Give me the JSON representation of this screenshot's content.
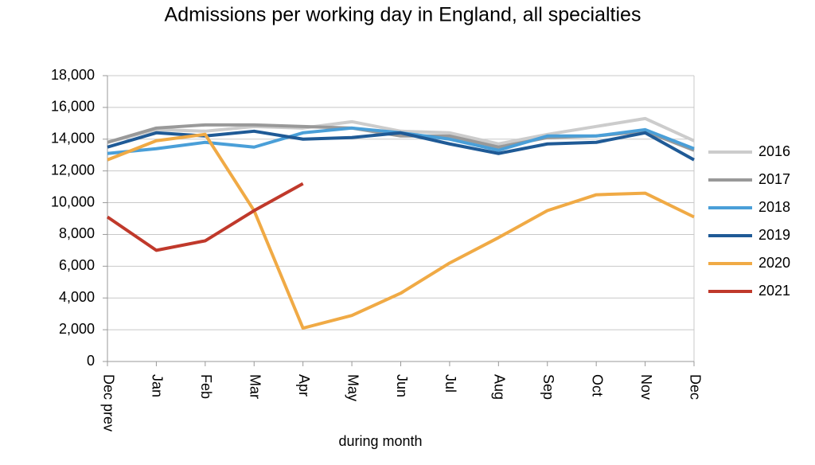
{
  "chart_data": {
    "type": "line",
    "title": "Admissions per working day in England, all specialties",
    "x_label": "during  month",
    "categories": [
      "Dec prev",
      "Jan",
      "Feb",
      "Mar",
      "Apr",
      "May",
      "Jun",
      "Jul",
      "Aug",
      "Sep",
      "Oct",
      "Nov",
      "Dec"
    ],
    "series": [
      {
        "name": "2016",
        "color": "#cccccc",
        "values": [
          13800,
          14600,
          14500,
          14800,
          14700,
          15100,
          14500,
          14400,
          13700,
          14300,
          14800,
          15300,
          13900
        ]
      },
      {
        "name": "2017",
        "color": "#999999",
        "values": [
          13800,
          14700,
          14900,
          14900,
          14800,
          14700,
          14200,
          14200,
          13500,
          14100,
          14200,
          14500,
          13300
        ]
      },
      {
        "name": "2018",
        "color": "#4a9fd8",
        "values": [
          13100,
          13400,
          13800,
          13500,
          14400,
          14700,
          14400,
          14000,
          13300,
          14200,
          14200,
          14600,
          13400
        ]
      },
      {
        "name": "2019",
        "color": "#1f5a96",
        "values": [
          13500,
          14400,
          14200,
          14500,
          14000,
          14100,
          14400,
          13700,
          13100,
          13700,
          13800,
          14400,
          12700
        ]
      },
      {
        "name": "2020",
        "color": "#f0aa45",
        "values": [
          12700,
          13900,
          14300,
          9500,
          2100,
          2900,
          4300,
          6200,
          7800,
          9500,
          10500,
          10600,
          9100
        ]
      },
      {
        "name": "2021",
        "color": "#c0392b",
        "values": [
          9100,
          7000,
          7600,
          9500,
          11200,
          null,
          null,
          null,
          null,
          null,
          null,
          null,
          null
        ]
      }
    ],
    "ylim": [
      0,
      18000
    ],
    "yticks": [
      0,
      {
        "value": 2000,
        "label": "2,000"
      },
      {
        "value": 4000,
        "label": "4,000"
      },
      {
        "value": 6000,
        "label": "6,000"
      },
      {
        "value": 8000,
        "label": "8,000"
      },
      {
        "value": 10000,
        "label": "10,000"
      },
      {
        "value": 12000,
        "label": "12,000"
      },
      {
        "value": 14000,
        "label": "14,000"
      },
      {
        "value": 16000,
        "label": "16,000"
      },
      {
        "value": 18000,
        "label": "18,000"
      }
    ],
    "grid": true,
    "legend": "right"
  }
}
